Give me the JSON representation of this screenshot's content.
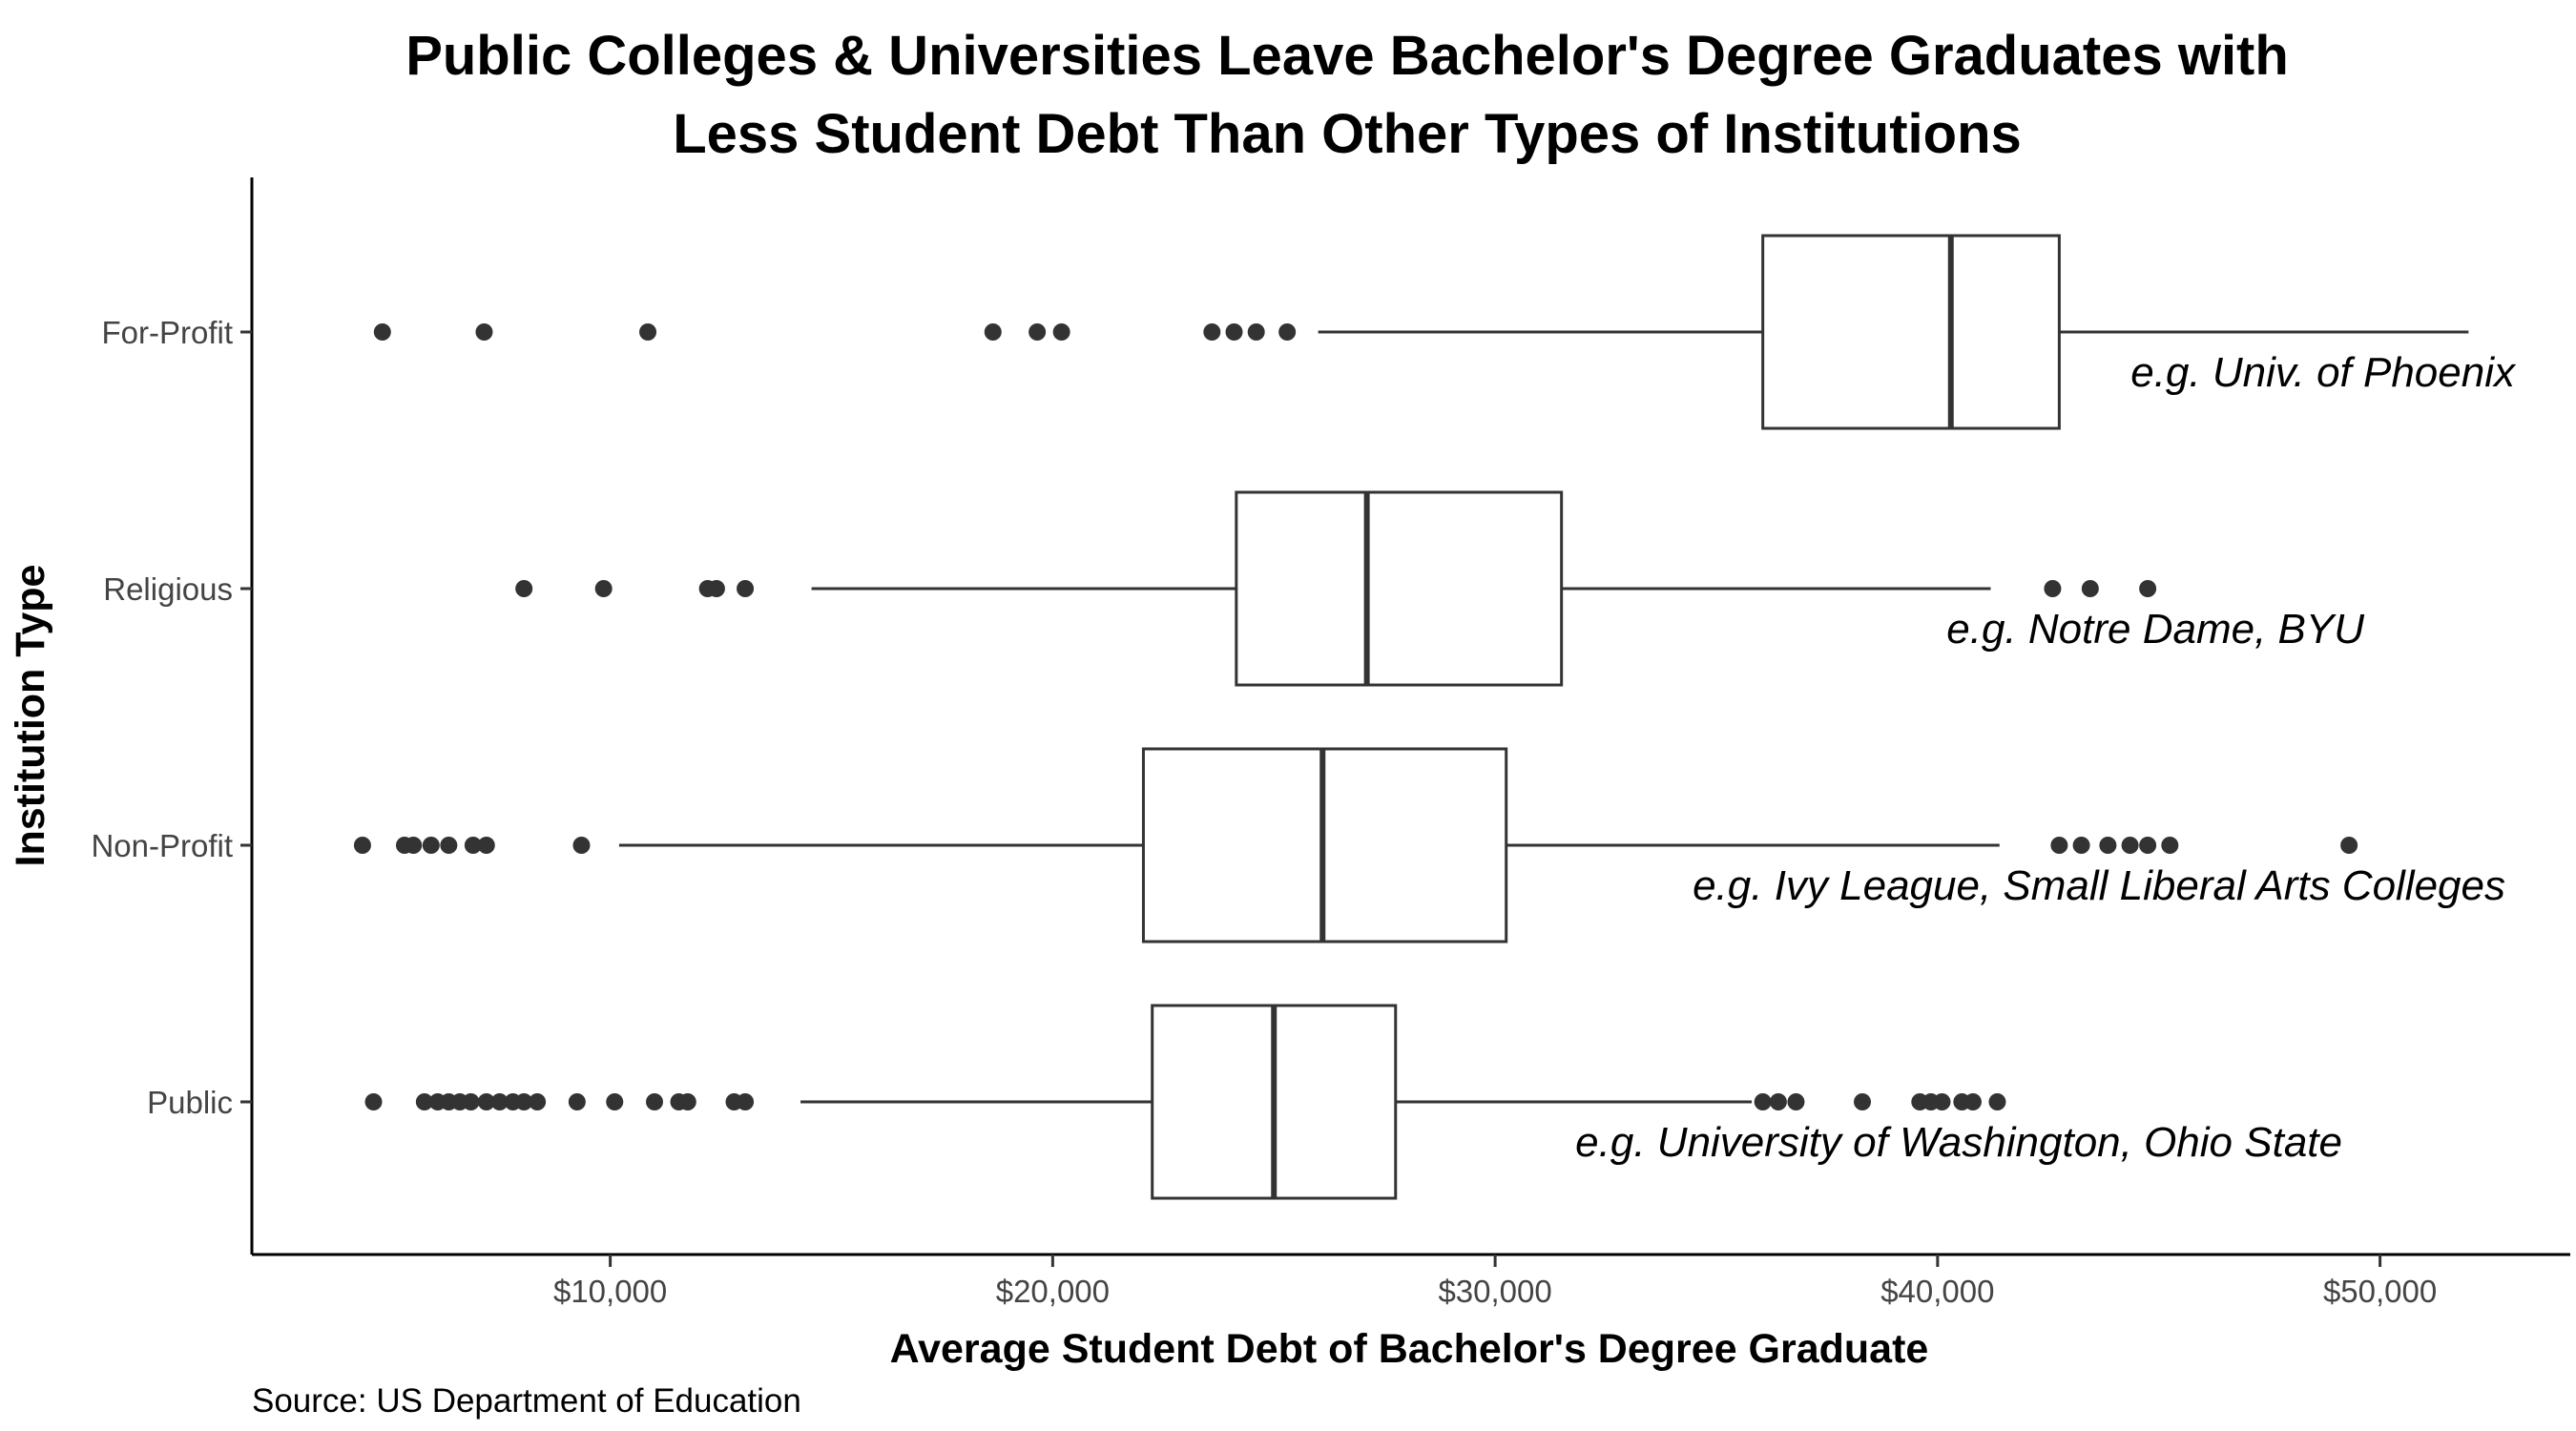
{
  "chart_data": {
    "type": "boxplot",
    "orientation": "horizontal",
    "title": [
      "Public Colleges & Universities Leave Bachelor's Degree Graduates with",
      "Less Student Debt Than Other Types of Institutions"
    ],
    "xlabel": "Average Student Debt of Bachelor's Degree Graduate",
    "ylabel": "Institution Type",
    "caption": "Source: US Department of Education",
    "xlim": [
      1900,
      54300
    ],
    "x_ticks": [
      10000,
      20000,
      30000,
      40000,
      50000
    ],
    "x_tick_labels": [
      "$10,000",
      "$20,000",
      "$30,000",
      "$40,000",
      "$50,000"
    ],
    "grid": false,
    "categories": [
      "For-Profit",
      "Religious",
      "Non-Profit",
      "Public"
    ],
    "series": [
      {
        "category": "For-Profit",
        "whisker_low": 26000,
        "q1": 36050,
        "median": 40300,
        "q3": 42750,
        "whisker_high": 52000,
        "outliers": [
          4850,
          7150,
          10850,
          18650,
          19650,
          20200,
          23600,
          24100,
          24600,
          25300
        ],
        "annotation": "e.g. Univ. of Phoenix"
      },
      {
        "category": "Religious",
        "whisker_low": 14550,
        "q1": 24150,
        "median": 27100,
        "q3": 31500,
        "whisker_high": 41200,
        "outliers": [
          8050,
          9850,
          12200,
          12400,
          13050,
          42600,
          43450,
          44750
        ],
        "annotation": "e.g. Notre Dame, BYU"
      },
      {
        "category": "Non-Profit",
        "whisker_low": 10200,
        "q1": 22050,
        "median": 26100,
        "q3": 30250,
        "whisker_high": 41400,
        "outliers": [
          4400,
          5350,
          5550,
          5950,
          6350,
          6900,
          7200,
          9350,
          42750,
          43250,
          43850,
          44350,
          44750,
          45250,
          49300
        ],
        "annotation": "e.g. Ivy League, Small Liberal Arts Colleges"
      },
      {
        "category": "Public",
        "whisker_low": 14300,
        "q1": 22250,
        "median": 25000,
        "q3": 27750,
        "whisker_high": 35800,
        "outliers": [
          4650,
          5800,
          6100,
          6350,
          6600,
          6850,
          7200,
          7500,
          7800,
          8050,
          8350,
          9250,
          10100,
          11000,
          11550,
          11750,
          12800,
          13050,
          36050,
          36400,
          36800,
          38300,
          39600,
          39850,
          40100,
          40550,
          40800,
          41350
        ],
        "annotation": "e.g. University of Washington, Ohio State"
      }
    ]
  }
}
